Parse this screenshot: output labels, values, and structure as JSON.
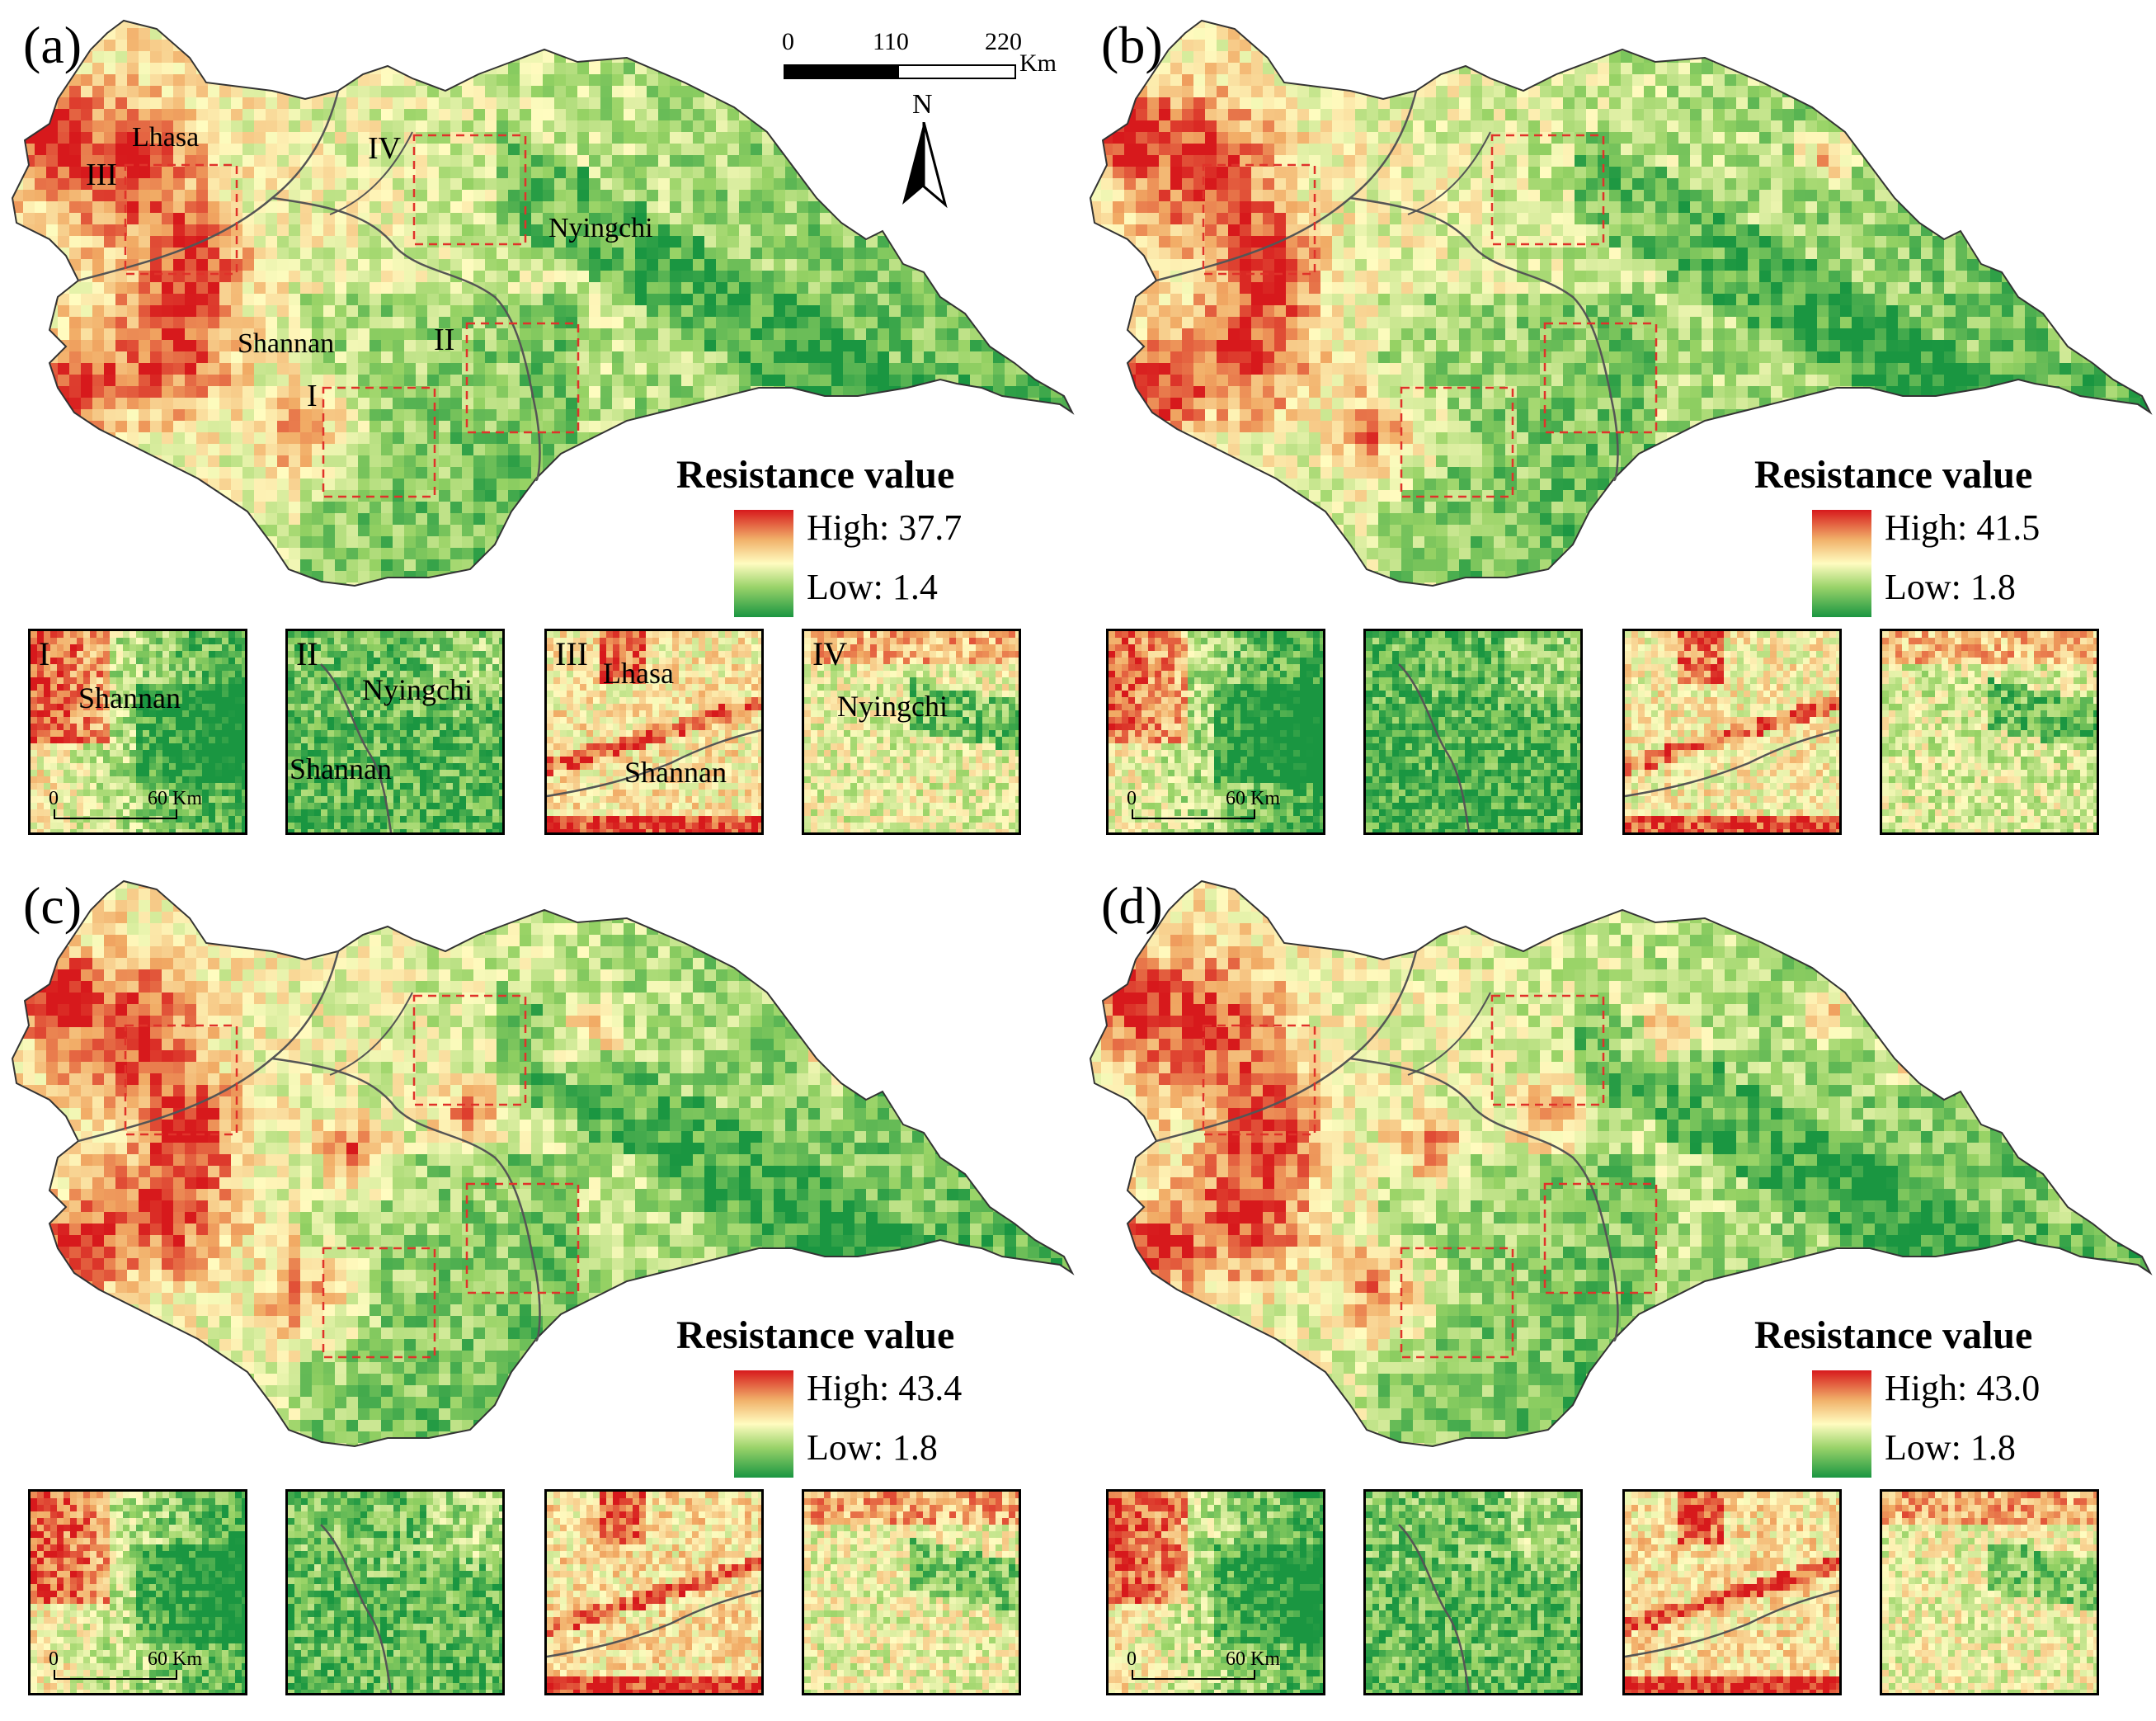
{
  "legend_title": "Resistance value",
  "colors": {
    "high": "#d7191c",
    "mid": "#fffcc0",
    "low": "#1a9641",
    "dark_low": "#0f7a35",
    "boundary": "#555555",
    "box": "#e0322a"
  },
  "scalebar": {
    "ticks": [
      "0",
      "110",
      "220"
    ],
    "unit": "Km"
  },
  "north_arrow": "N",
  "place_names": {
    "lhasa": "Lhasa",
    "nyingchi": "Nyingchi",
    "shannan": "Shannan"
  },
  "region_numerals": [
    "I",
    "II",
    "III",
    "IV"
  ],
  "inset_scale": {
    "zero": "0",
    "sixty": "60 Km"
  },
  "panels": [
    {
      "label": "(a)",
      "high": "High: 37.7",
      "low": "Low: 1.4",
      "redness": 0.55
    },
    {
      "label": "(b)",
      "high": "High: 41.5",
      "low": "Low: 1.8",
      "redness": 0.45
    },
    {
      "label": "(c)",
      "high": "High: 43.4",
      "low": "Low: 1.8",
      "redness": 0.5
    },
    {
      "label": "(d)",
      "high": "High: 43.0",
      "low": "Low: 1.8",
      "redness": 0.48
    }
  ]
}
